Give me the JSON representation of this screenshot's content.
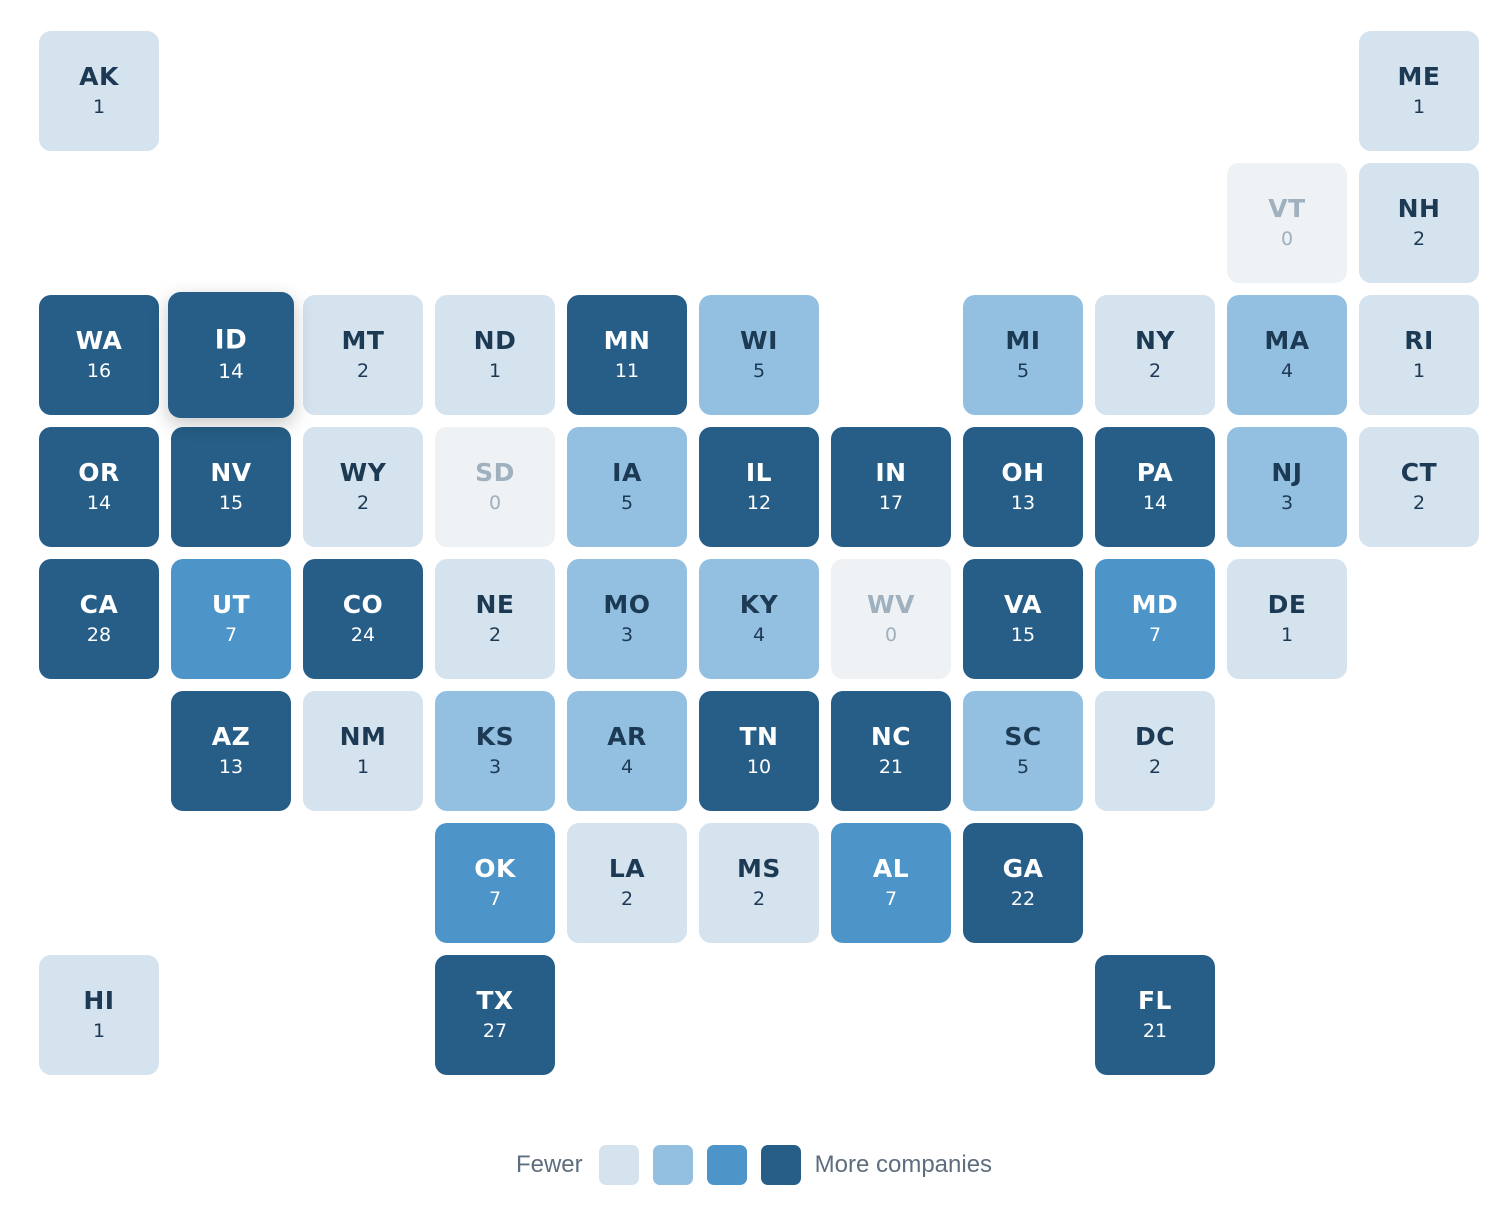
{
  "legend": {
    "fewer_label": "Fewer",
    "more_label": "More companies",
    "swatches": [
      "#d5e3ef",
      "#93bfe0",
      "#4d95c8",
      "#265e87"
    ]
  },
  "colors": {
    "level_0": "#eef2f5",
    "level_1": "#d5e3ef",
    "level_2": "#93bfe0",
    "level_3": "#4d95c8",
    "level_4": "#265e87"
  },
  "hovered_state": "ID",
  "states": [
    {
      "abbr": "AK",
      "count": 1,
      "level": 1,
      "row": 0,
      "col": 0
    },
    {
      "abbr": "ME",
      "count": 1,
      "level": 1,
      "row": 0,
      "col": 10
    },
    {
      "abbr": "VT",
      "count": 0,
      "level": 0,
      "row": 1,
      "col": 9
    },
    {
      "abbr": "NH",
      "count": 2,
      "level": 1,
      "row": 1,
      "col": 10
    },
    {
      "abbr": "WA",
      "count": 16,
      "level": 4,
      "row": 2,
      "col": 0
    },
    {
      "abbr": "ID",
      "count": 14,
      "level": 4,
      "row": 2,
      "col": 1
    },
    {
      "abbr": "MT",
      "count": 2,
      "level": 1,
      "row": 2,
      "col": 2
    },
    {
      "abbr": "ND",
      "count": 1,
      "level": 1,
      "row": 2,
      "col": 3
    },
    {
      "abbr": "MN",
      "count": 11,
      "level": 4,
      "row": 2,
      "col": 4
    },
    {
      "abbr": "WI",
      "count": 5,
      "level": 2,
      "row": 2,
      "col": 5
    },
    {
      "abbr": "MI",
      "count": 5,
      "level": 2,
      "row": 2,
      "col": 7
    },
    {
      "abbr": "NY",
      "count": 2,
      "level": 1,
      "row": 2,
      "col": 8
    },
    {
      "abbr": "MA",
      "count": 4,
      "level": 2,
      "row": 2,
      "col": 9
    },
    {
      "abbr": "RI",
      "count": 1,
      "level": 1,
      "row": 2,
      "col": 10
    },
    {
      "abbr": "OR",
      "count": 14,
      "level": 4,
      "row": 3,
      "col": 0
    },
    {
      "abbr": "NV",
      "count": 15,
      "level": 4,
      "row": 3,
      "col": 1
    },
    {
      "abbr": "WY",
      "count": 2,
      "level": 1,
      "row": 3,
      "col": 2
    },
    {
      "abbr": "SD",
      "count": 0,
      "level": 0,
      "row": 3,
      "col": 3
    },
    {
      "abbr": "IA",
      "count": 5,
      "level": 2,
      "row": 3,
      "col": 4
    },
    {
      "abbr": "IL",
      "count": 12,
      "level": 4,
      "row": 3,
      "col": 5
    },
    {
      "abbr": "IN",
      "count": 17,
      "level": 4,
      "row": 3,
      "col": 6
    },
    {
      "abbr": "OH",
      "count": 13,
      "level": 4,
      "row": 3,
      "col": 7
    },
    {
      "abbr": "PA",
      "count": 14,
      "level": 4,
      "row": 3,
      "col": 8
    },
    {
      "abbr": "NJ",
      "count": 3,
      "level": 2,
      "row": 3,
      "col": 9
    },
    {
      "abbr": "CT",
      "count": 2,
      "level": 1,
      "row": 3,
      "col": 10
    },
    {
      "abbr": "CA",
      "count": 28,
      "level": 4,
      "row": 4,
      "col": 0
    },
    {
      "abbr": "UT",
      "count": 7,
      "level": 3,
      "row": 4,
      "col": 1
    },
    {
      "abbr": "CO",
      "count": 24,
      "level": 4,
      "row": 4,
      "col": 2
    },
    {
      "abbr": "NE",
      "count": 2,
      "level": 1,
      "row": 4,
      "col": 3
    },
    {
      "abbr": "MO",
      "count": 3,
      "level": 2,
      "row": 4,
      "col": 4
    },
    {
      "abbr": "KY",
      "count": 4,
      "level": 2,
      "row": 4,
      "col": 5
    },
    {
      "abbr": "WV",
      "count": 0,
      "level": 0,
      "row": 4,
      "col": 6
    },
    {
      "abbr": "VA",
      "count": 15,
      "level": 4,
      "row": 4,
      "col": 7
    },
    {
      "abbr": "MD",
      "count": 7,
      "level": 3,
      "row": 4,
      "col": 8
    },
    {
      "abbr": "DE",
      "count": 1,
      "level": 1,
      "row": 4,
      "col": 9
    },
    {
      "abbr": "AZ",
      "count": 13,
      "level": 4,
      "row": 5,
      "col": 1
    },
    {
      "abbr": "NM",
      "count": 1,
      "level": 1,
      "row": 5,
      "col": 2
    },
    {
      "abbr": "KS",
      "count": 3,
      "level": 2,
      "row": 5,
      "col": 3
    },
    {
      "abbr": "AR",
      "count": 4,
      "level": 2,
      "row": 5,
      "col": 4
    },
    {
      "abbr": "TN",
      "count": 10,
      "level": 4,
      "row": 5,
      "col": 5
    },
    {
      "abbr": "NC",
      "count": 21,
      "level": 4,
      "row": 5,
      "col": 6
    },
    {
      "abbr": "SC",
      "count": 5,
      "level": 2,
      "row": 5,
      "col": 7
    },
    {
      "abbr": "DC",
      "count": 2,
      "level": 1,
      "row": 5,
      "col": 8
    },
    {
      "abbr": "OK",
      "count": 7,
      "level": 3,
      "row": 6,
      "col": 3
    },
    {
      "abbr": "LA",
      "count": 2,
      "level": 1,
      "row": 6,
      "col": 4
    },
    {
      "abbr": "MS",
      "count": 2,
      "level": 1,
      "row": 6,
      "col": 5
    },
    {
      "abbr": "AL",
      "count": 7,
      "level": 3,
      "row": 6,
      "col": 6
    },
    {
      "abbr": "GA",
      "count": 22,
      "level": 4,
      "row": 6,
      "col": 7
    },
    {
      "abbr": "HI",
      "count": 1,
      "level": 1,
      "row": 7,
      "col": 0
    },
    {
      "abbr": "TX",
      "count": 27,
      "level": 4,
      "row": 7,
      "col": 3
    },
    {
      "abbr": "FL",
      "count": 21,
      "level": 4,
      "row": 7,
      "col": 8
    }
  ]
}
